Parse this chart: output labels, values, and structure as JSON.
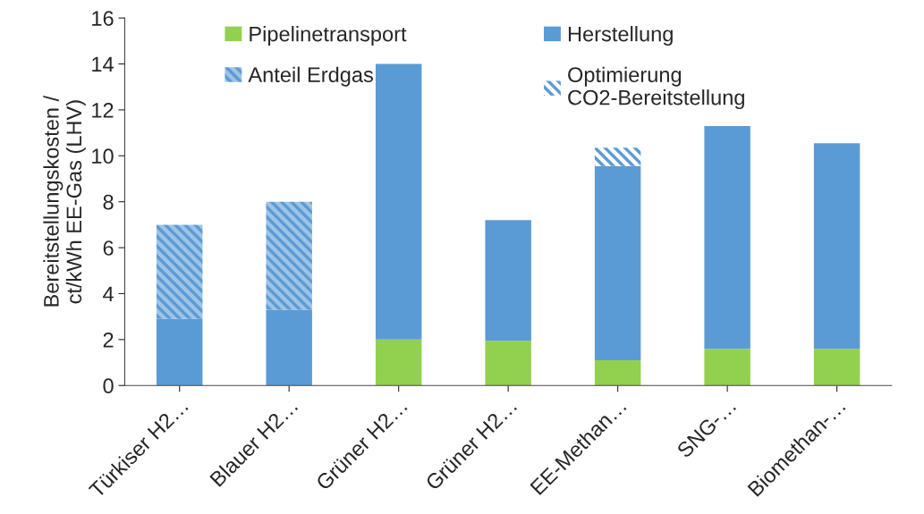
{
  "chart_data": {
    "type": "bar",
    "stacked": true,
    "ylabel": "Bereitstellungskosten /\nct/kWh EE-Gas (LHV)",
    "categories": [
      "Türkiser H2…",
      "Blauer H2…",
      "Grüner H2…",
      "Grüner H2…",
      "EE-Methan…",
      "SNG-…",
      "Biomethan-…"
    ],
    "series": [
      {
        "name": "Pipelinetransport",
        "color": "#92d050",
        "values": [
          null,
          null,
          2.0,
          1.95,
          1.1,
          1.6,
          1.6
        ]
      },
      {
        "name": "Herstellung",
        "color": "#5b9bd5",
        "values": [
          2.9,
          3.3,
          12.0,
          5.25,
          8.45,
          9.7,
          8.95
        ]
      },
      {
        "name": "Anteil Erdgas",
        "color": "#9dc3e6",
        "values": [
          4.1,
          4.7,
          null,
          null,
          null,
          null,
          null
        ]
      },
      {
        "name": "Optimierung\nCO2-Bereitstellung",
        "color": "#ffffff",
        "values": [
          null,
          null,
          null,
          null,
          0.8,
          null,
          null
        ]
      }
    ],
    "ylim": [
      0,
      16
    ],
    "yticks": [
      0,
      2,
      4,
      6,
      8,
      10,
      12,
      14,
      16
    ],
    "grid": false,
    "legend": "top"
  }
}
